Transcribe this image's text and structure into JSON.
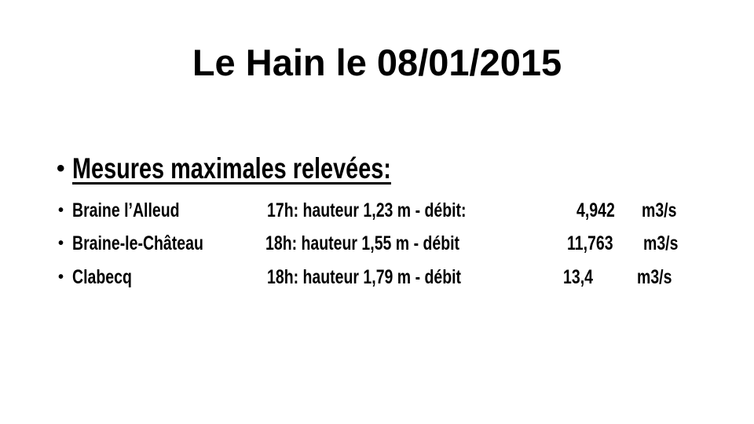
{
  "title": "Le Hain le 08/01/2015",
  "heading": "Mesures maximales relevées:",
  "rows": [
    {
      "station": "Braine l’Alleud",
      "measure": "17h: hauteur 1,23 m - débit:",
      "flow": "4,942",
      "unit": "m3/s"
    },
    {
      "station": "Braine-le-Château",
      "measure": "18h: hauteur 1,55 m - débit",
      "flow": "11,763",
      "unit": "m3/s"
    },
    {
      "station": "Clabecq",
      "measure": "18h: hauteur 1,79 m - débit",
      "flow": "13,4",
      "unit": "m3/s"
    }
  ]
}
